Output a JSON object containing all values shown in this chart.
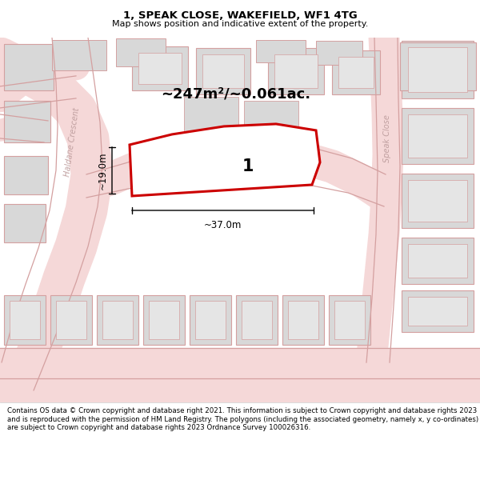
{
  "title": "1, SPEAK CLOSE, WAKEFIELD, WF1 4TG",
  "subtitle": "Map shows position and indicative extent of the property.",
  "footer": "Contains OS data © Crown copyright and database right 2021. This information is subject to Crown copyright and database rights 2023 and is reproduced with the permission of HM Land Registry. The polygons (including the associated geometry, namely x, y co-ordinates) are subject to Crown copyright and database rights 2023 Ordnance Survey 100026316.",
  "area_label": "~247m²/~0.061ac.",
  "plot_number": "1",
  "dim_width": "~37.0m",
  "dim_height": "~19.0m",
  "map_bg": "#f0eeee",
  "road_fill": "#f5d8d8",
  "outline_color": "#cc0000",
  "building_fill": "#d8d8d8",
  "road_line_color": "#d4a0a0",
  "dim_color": "#000000",
  "street_label_color": "#c0a0a0",
  "title_bg": "#ffffff",
  "footer_bg": "#f5f5f5"
}
